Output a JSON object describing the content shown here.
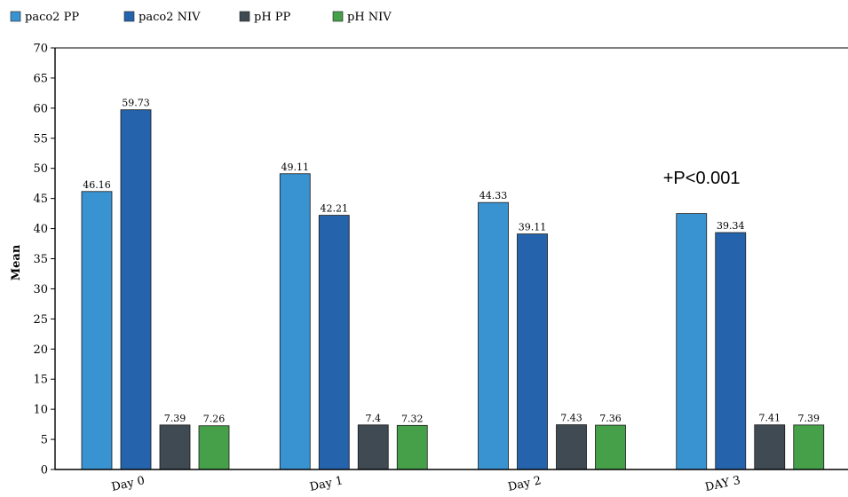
{
  "chart_data": {
    "type": "bar",
    "title": "",
    "xlabel": "",
    "ylabel": "Mean",
    "ylim": [
      0,
      70
    ],
    "yticks": [
      0,
      5,
      10,
      15,
      20,
      25,
      30,
      35,
      40,
      45,
      50,
      55,
      60,
      65,
      70
    ],
    "grid": false,
    "legend_position": "top-left",
    "categories": [
      "Day 0",
      "Day 1",
      "Day 2",
      "DAY 3"
    ],
    "series": [
      {
        "name": "paco2 PP",
        "color": "#3a93d1",
        "values": [
          46.16,
          49.11,
          44.33,
          42.5
        ],
        "labels": [
          "46.16",
          "49.11",
          "44.33",
          ""
        ]
      },
      {
        "name": "paco2 NIV",
        "color": "#2563ad",
        "values": [
          59.73,
          42.21,
          39.11,
          39.34
        ],
        "labels": [
          "59.73",
          "42.21",
          "39.11",
          "39.34"
        ]
      },
      {
        "name": "pH PP",
        "color": "#3f4a52",
        "values": [
          7.39,
          7.4,
          7.43,
          7.41
        ],
        "labels": [
          "7.39",
          "7.4",
          "7.43",
          "7.41"
        ]
      },
      {
        "name": "pH NIV",
        "color": "#45a049",
        "values": [
          7.26,
          7.32,
          7.36,
          7.39
        ],
        "labels": [
          "7.26",
          "7.32",
          "7.36",
          "7.39"
        ]
      }
    ],
    "annotations": [
      {
        "text": "+P<0.001",
        "category": "DAY 3",
        "y": 48.5
      }
    ]
  }
}
